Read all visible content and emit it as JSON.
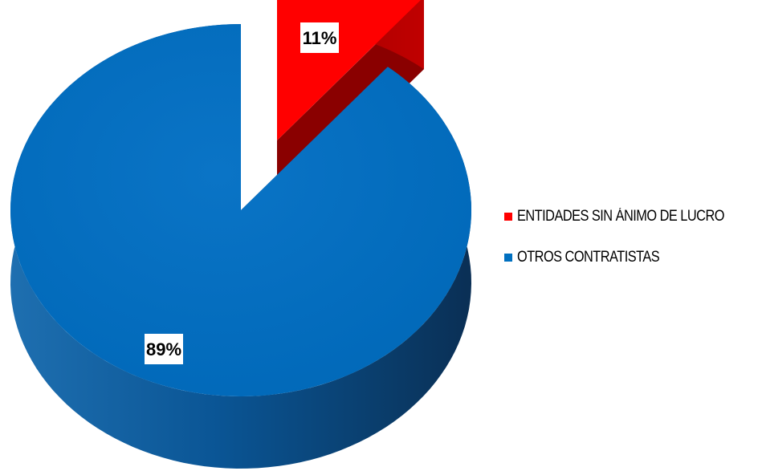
{
  "chart_data": {
    "type": "pie",
    "style": "3d-exploded",
    "categories": [
      "ENTIDADES SIN ÁNIMO DE LUCRO",
      "OTROS CONTRATISTAS"
    ],
    "values": [
      11,
      89
    ],
    "labels": [
      "11%",
      "89%"
    ],
    "colors": [
      "#ff0000",
      "#0070c0"
    ],
    "legend": "right"
  }
}
